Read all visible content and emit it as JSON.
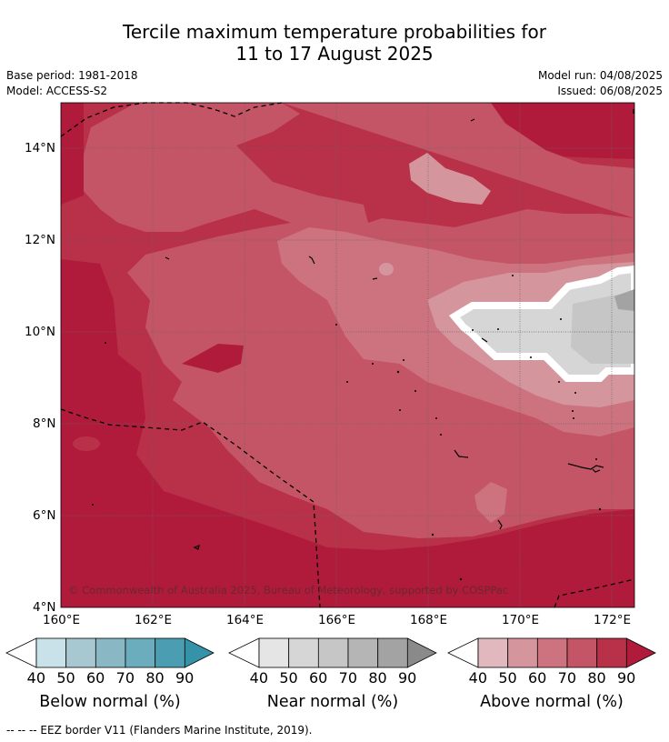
{
  "title": {
    "line1": "Tercile maximum temperature probabilities for",
    "line2": "11 to 17 August 2025"
  },
  "info": {
    "base_period": "Base period: 1981-2018",
    "model": "Model: ACCESS-S2",
    "model_run": "Model run: 04/08/2025",
    "issued": "Issued: 06/08/2025"
  },
  "map": {
    "copyright": "© Commonwealth of Australia 2025, Bureau of Meteorology, supported by COSPPac",
    "lon_labels": [
      "160°E",
      "162°E",
      "164°E",
      "166°E",
      "168°E",
      "170°E",
      "172°E"
    ],
    "lat_labels": [
      "14°N",
      "12°N",
      "10°N",
      "8°N",
      "6°N",
      "4°N"
    ]
  },
  "colorbars": [
    {
      "title": "Below normal (%)",
      "ticks": [
        "40",
        "50",
        "60",
        "70",
        "80",
        "90"
      ],
      "colors": [
        "#c9e1e8",
        "#a7c8d0",
        "#89b7c3",
        "#6badbd",
        "#4b9db2",
        "#3493a8"
      ]
    },
    {
      "title": "Near normal (%)",
      "ticks": [
        "40",
        "50",
        "60",
        "70",
        "80",
        "90"
      ],
      "colors": [
        "#e5e5e5",
        "#d6d6d6",
        "#c6c6c6",
        "#b5b5b5",
        "#a3a3a3",
        "#8a8a8a"
      ]
    },
    {
      "title": "Above normal (%)",
      "ticks": [
        "40",
        "50",
        "60",
        "70",
        "80",
        "90"
      ],
      "colors": [
        "#e0b8be",
        "#d5959d",
        "#cd737f",
        "#c45566",
        "#b93049",
        "#b01b3c"
      ]
    }
  ],
  "footer": "--  --  -- EEZ border V11 (Flanders Marine Institute, 2019)."
}
